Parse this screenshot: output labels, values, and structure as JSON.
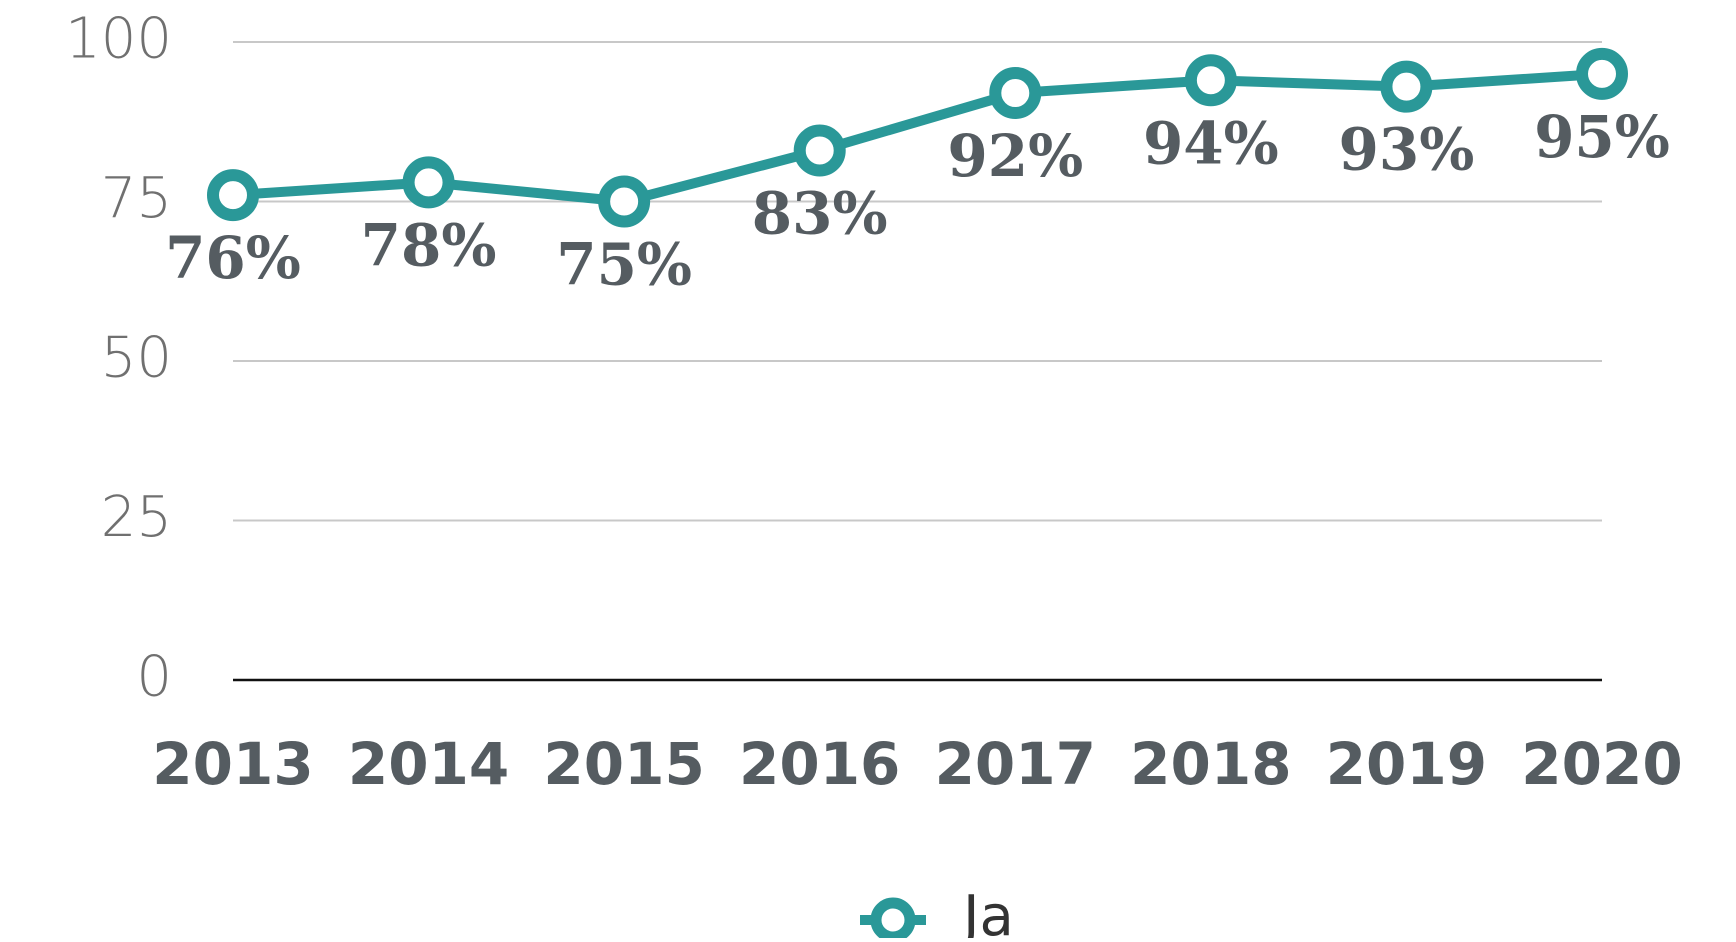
{
  "chart_data": {
    "type": "line",
    "categories": [
      "2013",
      "2014",
      "2015",
      "2016",
      "2017",
      "2018",
      "2019",
      "2020"
    ],
    "series": [
      {
        "name": "Ja",
        "color": "#2a9898",
        "values": [
          76,
          78,
          75,
          83,
          92,
          94,
          93,
          95
        ],
        "value_labels": [
          "76%",
          "78%",
          "75%",
          "83%",
          "92%",
          "94%",
          "93%",
          "95%"
        ]
      }
    ],
    "ylim": [
      0,
      100
    ],
    "yticks": [
      0,
      25,
      50,
      75,
      100
    ],
    "grid": true,
    "legend": "bottom"
  }
}
